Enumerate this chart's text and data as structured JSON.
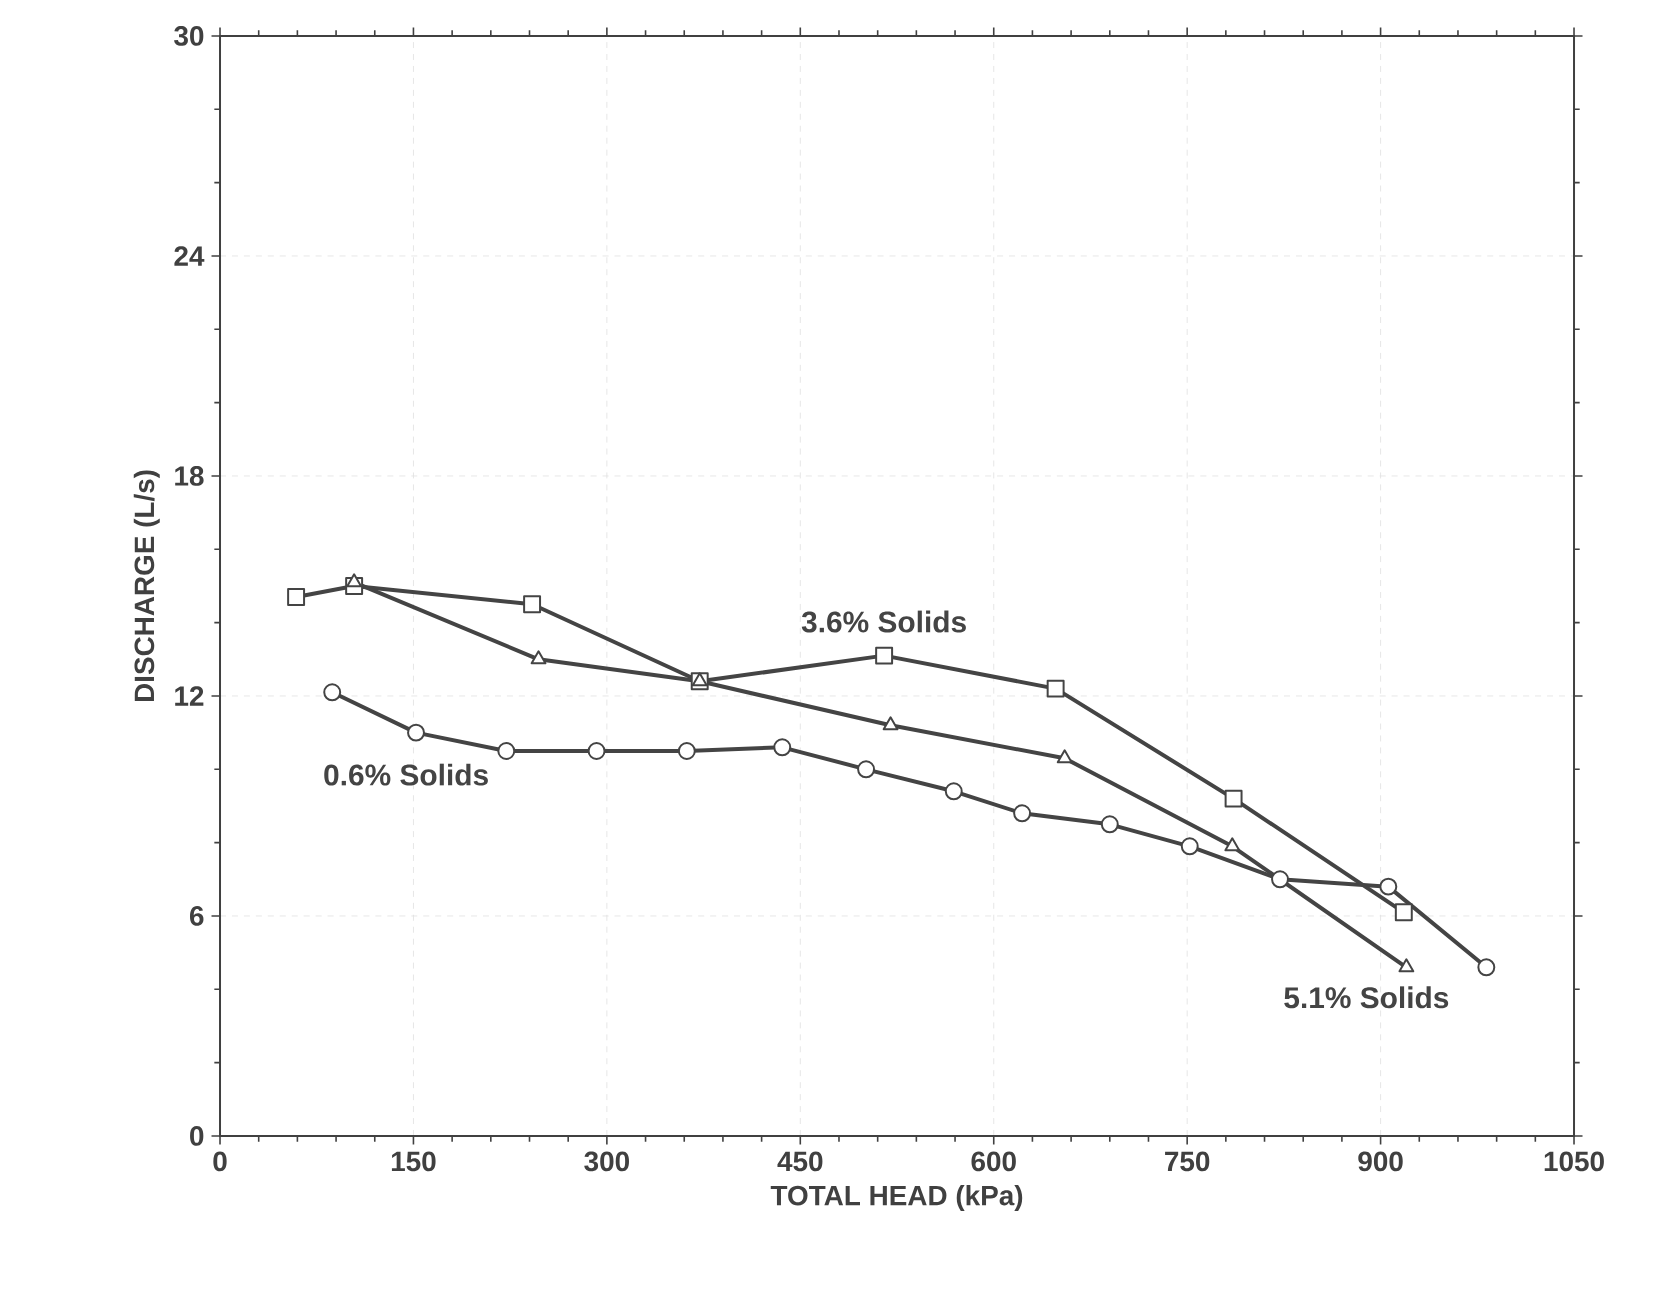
{
  "chart_data": {
    "type": "line",
    "xlabel": "TOTAL HEAD  (kPa)",
    "ylabel": "DISCHARGE  (L/s)",
    "xlim": [
      0,
      1050
    ],
    "xticks": [
      0,
      150,
      300,
      450,
      600,
      750,
      900,
      1050
    ],
    "ylim": [
      0,
      30
    ],
    "yticks": [
      0,
      6,
      12,
      18,
      24,
      30
    ],
    "grid": true,
    "series": [
      {
        "name": "0.6% Solids",
        "color": "#444444",
        "marker": "circle",
        "x": [
          87,
          152,
          222,
          292,
          362,
          436,
          501,
          569,
          622,
          690,
          752,
          822,
          906,
          982
        ],
        "values": [
          12.1,
          11.0,
          10.5,
          10.5,
          10.5,
          10.6,
          10.0,
          9.4,
          8.8,
          8.5,
          7.9,
          7.0,
          6.8,
          4.6
        ]
      },
      {
        "name": "3.6% Solids",
        "color": "#444444",
        "marker": "square",
        "x": [
          59,
          104,
          242,
          372,
          515,
          648,
          786,
          918
        ],
        "values": [
          14.7,
          15.0,
          14.5,
          12.4,
          13.1,
          12.2,
          9.2,
          6.1
        ]
      },
      {
        "name": "5.1% Solids",
        "color": "#444444",
        "marker": "triangle",
        "x": [
          104,
          247,
          372,
          520,
          655,
          785,
          920
        ],
        "values": [
          15.1,
          13.0,
          12.4,
          11.2,
          10.3,
          7.9,
          4.6
        ]
      }
    ]
  }
}
